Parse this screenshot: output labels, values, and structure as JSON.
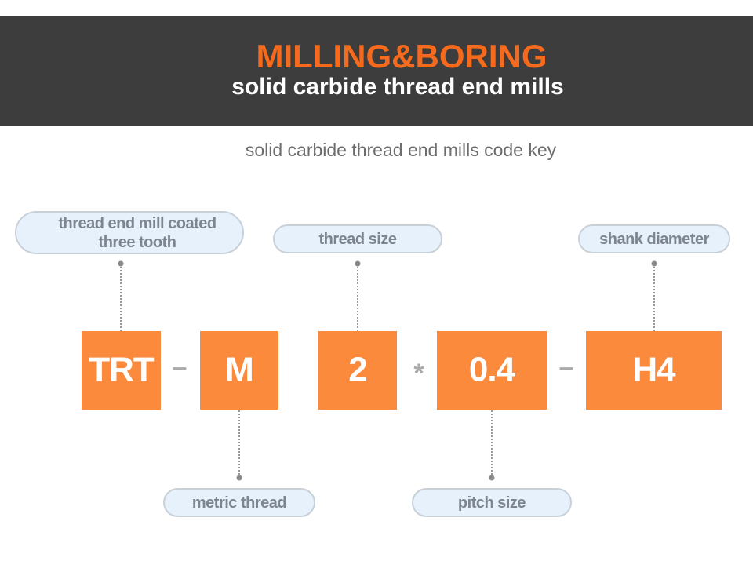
{
  "header": {
    "title": "MILLING&BORING",
    "subtitle": "solid carbide thread end mills"
  },
  "section_title": "solid carbide thread end mills code key",
  "codes": [
    {
      "code": "TRT",
      "label": [
        "thread end mill coated",
        "three tooth"
      ]
    },
    {
      "code": "M",
      "label": [
        "metric thread"
      ]
    },
    {
      "code": "2",
      "label": [
        "thread size"
      ]
    },
    {
      "code": "0.4",
      "label": [
        "pitch size"
      ]
    },
    {
      "code": "H4",
      "label": [
        "shank diameter"
      ]
    }
  ],
  "separators": [
    "–",
    "*",
    "–"
  ]
}
